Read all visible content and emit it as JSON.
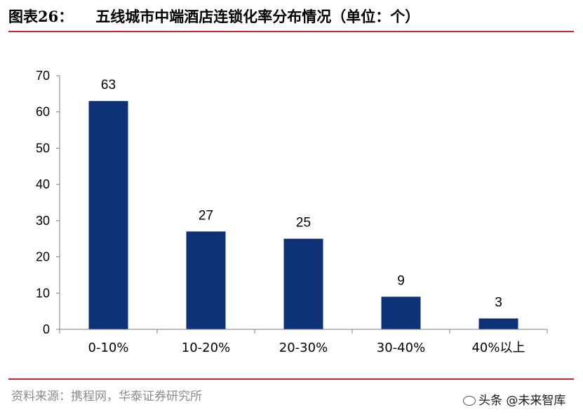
{
  "header": {
    "figure_label": "图表26：",
    "title_text": "五线城市中端酒店连锁化率分布情况（单位：个）"
  },
  "chart_data": {
    "type": "bar",
    "categories": [
      "0-10%",
      "10-20%",
      "20-30%",
      "30-40%",
      "40%以上"
    ],
    "values": [
      63,
      27,
      25,
      9,
      3
    ],
    "data_labels": [
      "63",
      "27",
      "25",
      "9",
      "3"
    ],
    "ylim": [
      0,
      70
    ],
    "yticks": [
      0,
      10,
      20,
      30,
      40,
      50,
      60,
      70
    ],
    "ytick_labels": [
      "0",
      "10",
      "20",
      "30",
      "40",
      "50",
      "60",
      "70"
    ],
    "bar_color": "#0e3278",
    "grid": false,
    "legend": "none"
  },
  "footer": {
    "source": "资料来源：携程网，华泰证券研究所",
    "watermark": "头条 @未来智库"
  },
  "colors": {
    "rule": "#c8262c",
    "axis": "#7f7f7f"
  }
}
